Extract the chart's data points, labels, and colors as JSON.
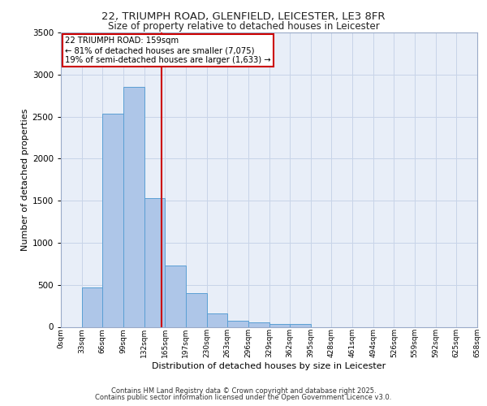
{
  "title1": "22, TRIUMPH ROAD, GLENFIELD, LEICESTER, LE3 8FR",
  "title2": "Size of property relative to detached houses in Leicester",
  "xlabel": "Distribution of detached houses by size in Leicester",
  "ylabel": "Number of detached properties",
  "bin_labels": [
    "0sqm",
    "33sqm",
    "66sqm",
    "99sqm",
    "132sqm",
    "165sqm",
    "197sqm",
    "230sqm",
    "263sqm",
    "296sqm",
    "329sqm",
    "362sqm",
    "395sqm",
    "428sqm",
    "461sqm",
    "494sqm",
    "526sqm",
    "559sqm",
    "592sqm",
    "625sqm",
    "658sqm"
  ],
  "bar_values": [
    0,
    470,
    2530,
    2850,
    1530,
    730,
    400,
    155,
    75,
    50,
    35,
    30,
    0,
    0,
    0,
    0,
    0,
    0,
    0,
    0
  ],
  "bar_color": "#aec6e8",
  "bar_edge_color": "#5a9fd4",
  "grid_color": "#c8d4e8",
  "background_color": "#e8eef8",
  "vline_color": "#cc0000",
  "annotation_title": "22 TRIUMPH ROAD: 159sqm",
  "annotation_line1": "← 81% of detached houses are smaller (7,075)",
  "annotation_line2": "19% of semi-detached houses are larger (1,633) →",
  "annotation_box_color": "#cc0000",
  "ylim": [
    0,
    3500
  ],
  "yticks": [
    0,
    500,
    1000,
    1500,
    2000,
    2500,
    3000,
    3500
  ],
  "footer1": "Contains HM Land Registry data © Crown copyright and database right 2025.",
  "footer2": "Contains public sector information licensed under the Open Government Licence v3.0."
}
